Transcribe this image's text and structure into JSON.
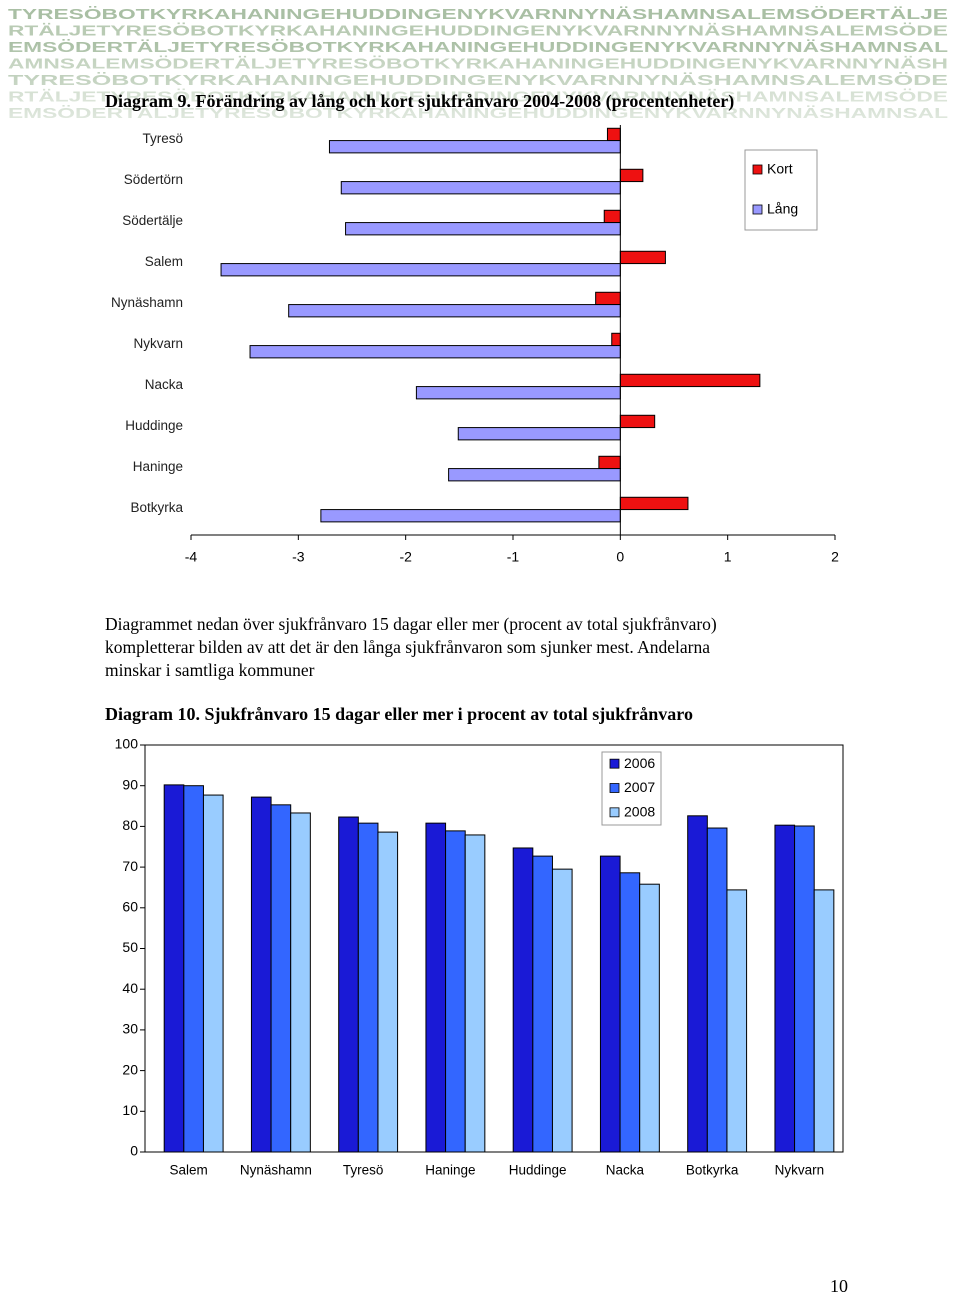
{
  "banner": [
    "TYRESÖBOTKYRKAHANINGEHUDDINGENYKVARNNYNÄSHAMNSALEMSÖDERTÄLJE",
    "RTÄLJETYRESÖBOTKYRKAHANINGEHUDDINGENYKVARNNYNÄSHAMNSALEMSÖDE",
    "EMSÖDERTÄLJETYRESÖBOTKYRKAHANINGEHUDDINGENYKVARNNYNÄSHAMNSAL",
    "AMNSALEMSÖDERTÄLJETYRESÖBOTKYRKAHANINGEHUDDINGENYKVARNNYNÄSH",
    "TYRESÖBOTKYRKAHANINGEHUDDINGENYKVARNNYNÄSHAMNSALEMSÖDE",
    "RTÄLJETYRESÖBOTKYRKAHANINGEHUDDINGENYKVARNNYNÄSHAMNSALEMSÖDE",
    "EMSÖDERTÄLJETYRESÖBOTKYRKAHANINGEHUDDINGENYKVARNNYNÄSHAMNSAL"
  ],
  "chart_data": [
    {
      "type": "hbar",
      "title": "Diagram 9. Förändring av lång och kort sjukfrånvaro 2004-2008 (procentenheter)",
      "categories": [
        "Tyresö",
        "Södertörn",
        "Södertälje",
        "Salem",
        "Nynäshamn",
        "Nykvarn",
        "Nacka",
        "Huddinge",
        "Haninge",
        "Botkyrka"
      ],
      "series": [
        {
          "name": "Kort",
          "color": "#ee1111",
          "values": [
            -0.12,
            0.21,
            -0.15,
            0.42,
            -0.23,
            -0.08,
            1.3,
            0.32,
            -0.2,
            0.63
          ]
        },
        {
          "name": "Lång",
          "color": "#9999ff",
          "values": [
            -2.71,
            -2.6,
            -2.56,
            -3.72,
            -3.09,
            -3.45,
            -1.9,
            -1.51,
            -1.6,
            -2.79
          ]
        }
      ],
      "xlim": [
        -4,
        2
      ],
      "xticks": [
        -4,
        -3,
        -2,
        -1,
        0,
        1,
        2
      ],
      "legend": "upper right"
    },
    {
      "type": "bar",
      "title": "Diagram 10. Sjukfrånvaro 15 dagar eller mer i procent av total sjukfrånvaro",
      "categories": [
        "Salem",
        "Nynäshamn",
        "Tyresö",
        "Haninge",
        "Huddinge",
        "Nacka",
        "Botkyrka",
        "Nykvarn"
      ],
      "series": [
        {
          "name": "2006",
          "color": "#1a1ad6",
          "values": [
            90.2,
            87.2,
            82.3,
            80.8,
            74.7,
            72.7,
            82.6,
            80.3
          ]
        },
        {
          "name": "2007",
          "color": "#3366ff",
          "values": [
            90.0,
            85.3,
            80.8,
            78.9,
            72.7,
            68.6,
            79.6,
            80.1
          ]
        },
        {
          "name": "2008",
          "color": "#99ccff",
          "values": [
            87.7,
            83.3,
            78.6,
            77.9,
            69.5,
            65.8,
            64.4,
            64.4
          ]
        }
      ],
      "ylim": [
        0,
        100
      ],
      "yticks": [
        0,
        10,
        20,
        30,
        40,
        50,
        60,
        70,
        80,
        90,
        100
      ],
      "legend": "upper right"
    }
  ],
  "paragraph": [
    "Diagrammet nedan över sjukfrånvaro 15 dagar eller mer (procent av total sjukfrånvaro)",
    "kompletterar bilden av att det är den långa sjukfrånvaron som sjunker mest. Andelarna",
    "minskar i samtliga kommuner"
  ],
  "page_number": "10"
}
